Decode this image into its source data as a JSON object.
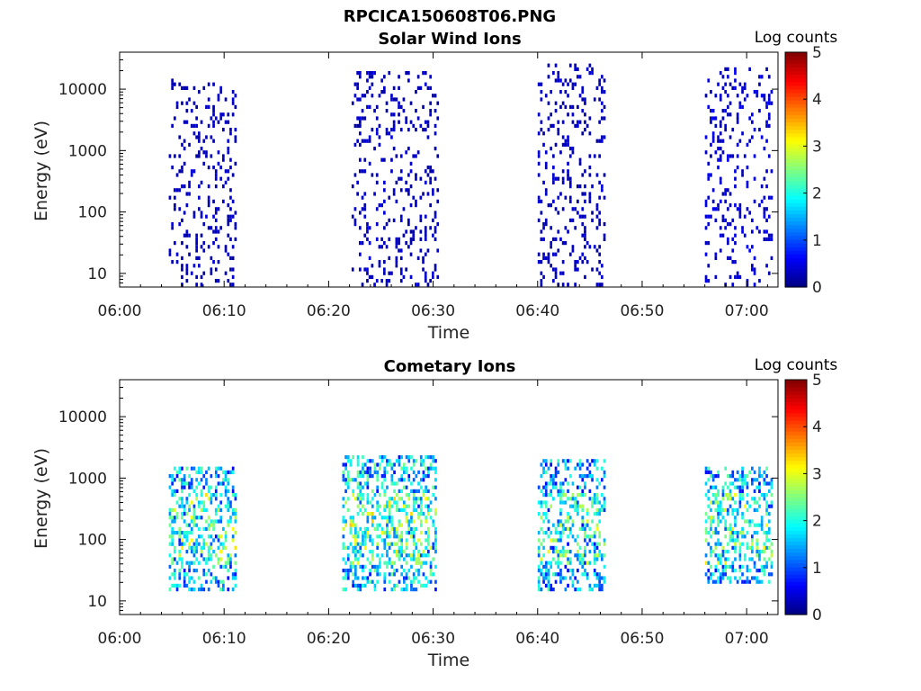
{
  "figure": {
    "title": "RPCICA150608T06.PNG"
  },
  "chart_data": [
    {
      "type": "heatmap",
      "title": "Solar Wind Ions",
      "xlabel": "Time",
      "ylabel": "Energy (eV)",
      "xticks": [
        "06:00",
        "06:10",
        "06:20",
        "06:30",
        "06:40",
        "06:50",
        "07:00"
      ],
      "xlim_minutes": [
        0,
        63
      ],
      "yscale": "log",
      "ylim": [
        6,
        40000
      ],
      "yticks": [
        "10",
        "100",
        "1000",
        "10000"
      ],
      "colorbar": {
        "label": "Log counts",
        "ticks": [
          "0",
          "1",
          "2",
          "3",
          "4",
          "5"
        ],
        "range": [
          0,
          5
        ],
        "colormap": "jet"
      },
      "bursts": [
        {
          "start_min": 4.7,
          "end_min": 11.3,
          "emin": 6,
          "emax": 14000,
          "level": 0.3
        },
        {
          "start_min": 22.2,
          "end_min": 30.6,
          "emin": 6,
          "emax": 20000,
          "level": 0.3
        },
        {
          "start_min": 40.0,
          "end_min": 46.6,
          "emin": 6,
          "emax": 25000,
          "level": 0.3
        },
        {
          "start_min": 56.0,
          "end_min": 62.4,
          "emin": 6,
          "emax": 25000,
          "level": 0.4
        }
      ]
    },
    {
      "type": "heatmap",
      "title": "Cometary Ions",
      "xlabel": "Time",
      "ylabel": "Energy (eV)",
      "xticks": [
        "06:00",
        "06:10",
        "06:20",
        "06:30",
        "06:40",
        "06:50",
        "07:00"
      ],
      "xlim_minutes": [
        0,
        63
      ],
      "yscale": "log",
      "ylim": [
        6,
        40000
      ],
      "yticks": [
        "10",
        "100",
        "1000",
        "10000"
      ],
      "colorbar": {
        "label": "Log counts",
        "ticks": [
          "0",
          "1",
          "2",
          "3",
          "4",
          "5"
        ],
        "range": [
          0,
          5
        ],
        "colormap": "jet"
      },
      "bursts": [
        {
          "start_min": 4.7,
          "end_min": 11.2,
          "emin": 15,
          "emax": 1500,
          "level": 1.5
        },
        {
          "start_min": 21.3,
          "end_min": 30.3,
          "emin": 15,
          "emax": 2500,
          "level": 1.6
        },
        {
          "start_min": 40.0,
          "end_min": 46.4,
          "emin": 15,
          "emax": 2000,
          "level": 1.4
        },
        {
          "start_min": 56.0,
          "end_min": 62.4,
          "emin": 20,
          "emax": 1600,
          "level": 1.5
        }
      ]
    }
  ]
}
